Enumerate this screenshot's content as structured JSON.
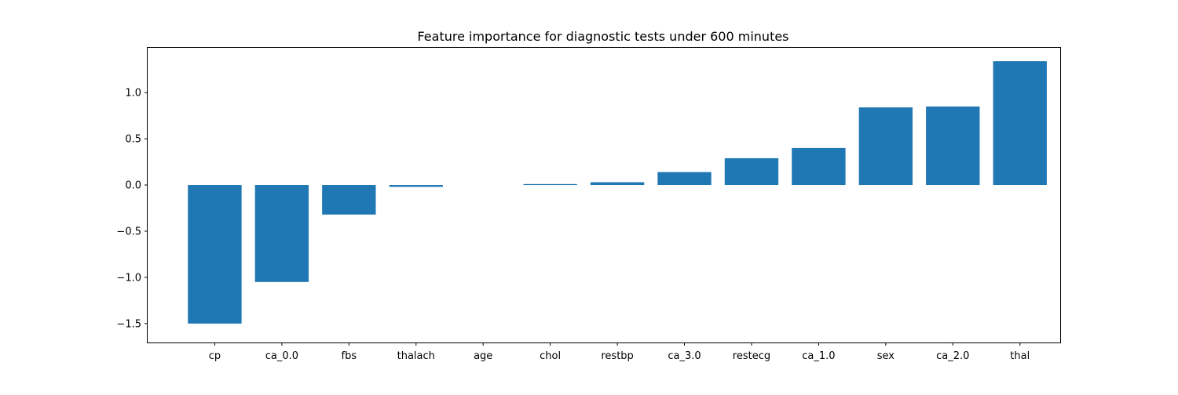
{
  "chart_data": {
    "type": "bar",
    "title": "Feature importance for diagnostic tests under 600 minutes",
    "xlabel": "",
    "ylabel": "",
    "categories": [
      "cp",
      "ca_0.0",
      "fbs",
      "thalach",
      "age",
      "chol",
      "restbp",
      "ca_3.0",
      "restecg",
      "ca_1.0",
      "sex",
      "ca_2.0",
      "thal"
    ],
    "values": [
      -1.5,
      -1.05,
      -0.32,
      -0.02,
      0.0,
      0.01,
      0.03,
      0.14,
      0.29,
      0.4,
      0.84,
      0.85,
      1.34
    ],
    "ylim": [
      -1.56,
      1.34
    ],
    "yticks": [
      -1.5,
      -1.0,
      -0.5,
      0.0,
      0.5,
      1.0
    ],
    "ytick_labels": [
      "−1.5",
      "−1.0",
      "−0.5",
      "0.0",
      "0.5",
      "1.0"
    ],
    "grid": false,
    "bar_color": "#1f77b4"
  }
}
